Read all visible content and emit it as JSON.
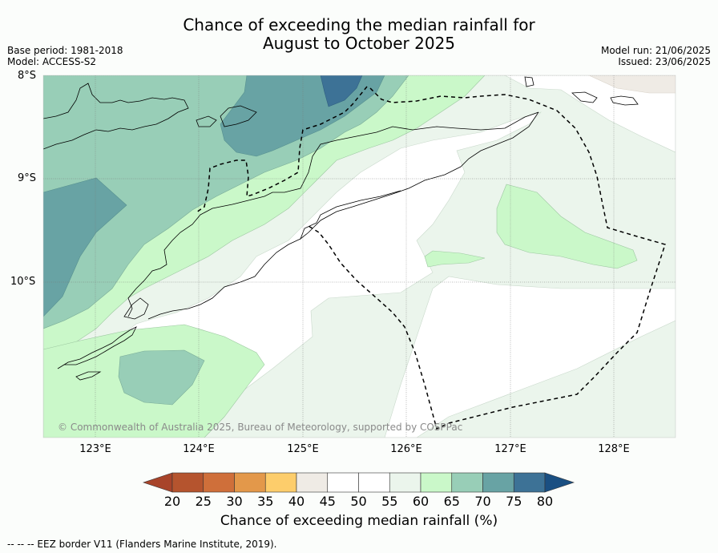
{
  "title_line1": "Chance of exceeding the median rainfall for",
  "title_line2": "August to October 2025",
  "meta_left": [
    "Base period: 1981-2018",
    "Model: ACCESS-S2"
  ],
  "meta_right": [
    "Model run: 21/06/2025",
    "Issued: 23/06/2025"
  ],
  "lat_labels": [
    "8°S",
    "9°S",
    "10°S"
  ],
  "lon_labels": [
    "123°E",
    "124°E",
    "125°E",
    "126°E",
    "127°E",
    "128°E"
  ],
  "copyright": "© Commonwealth of Australia 2025, Bureau of Meteorology, supported by COSPPac",
  "colorbar": {
    "label": "Chance of exceeding median rainfall (%)",
    "ticks": [
      "20",
      "25",
      "30",
      "35",
      "40",
      "45",
      "50",
      "55",
      "60",
      "65",
      "70",
      "75",
      "80"
    ],
    "colors": [
      "#a8442a",
      "#b5542e",
      "#cf6f3a",
      "#e3984a",
      "#fdcd6b",
      "#efebe5",
      "#ffffff",
      "#ffffff",
      "#ebf5ec",
      "#caf8c9",
      "#98ceb7",
      "#68a3a4",
      "#3d7296",
      "#1a4f82"
    ]
  },
  "footer": "-- -- -- EEZ border V11 (Flanders Marine Institute, 2019)."
}
